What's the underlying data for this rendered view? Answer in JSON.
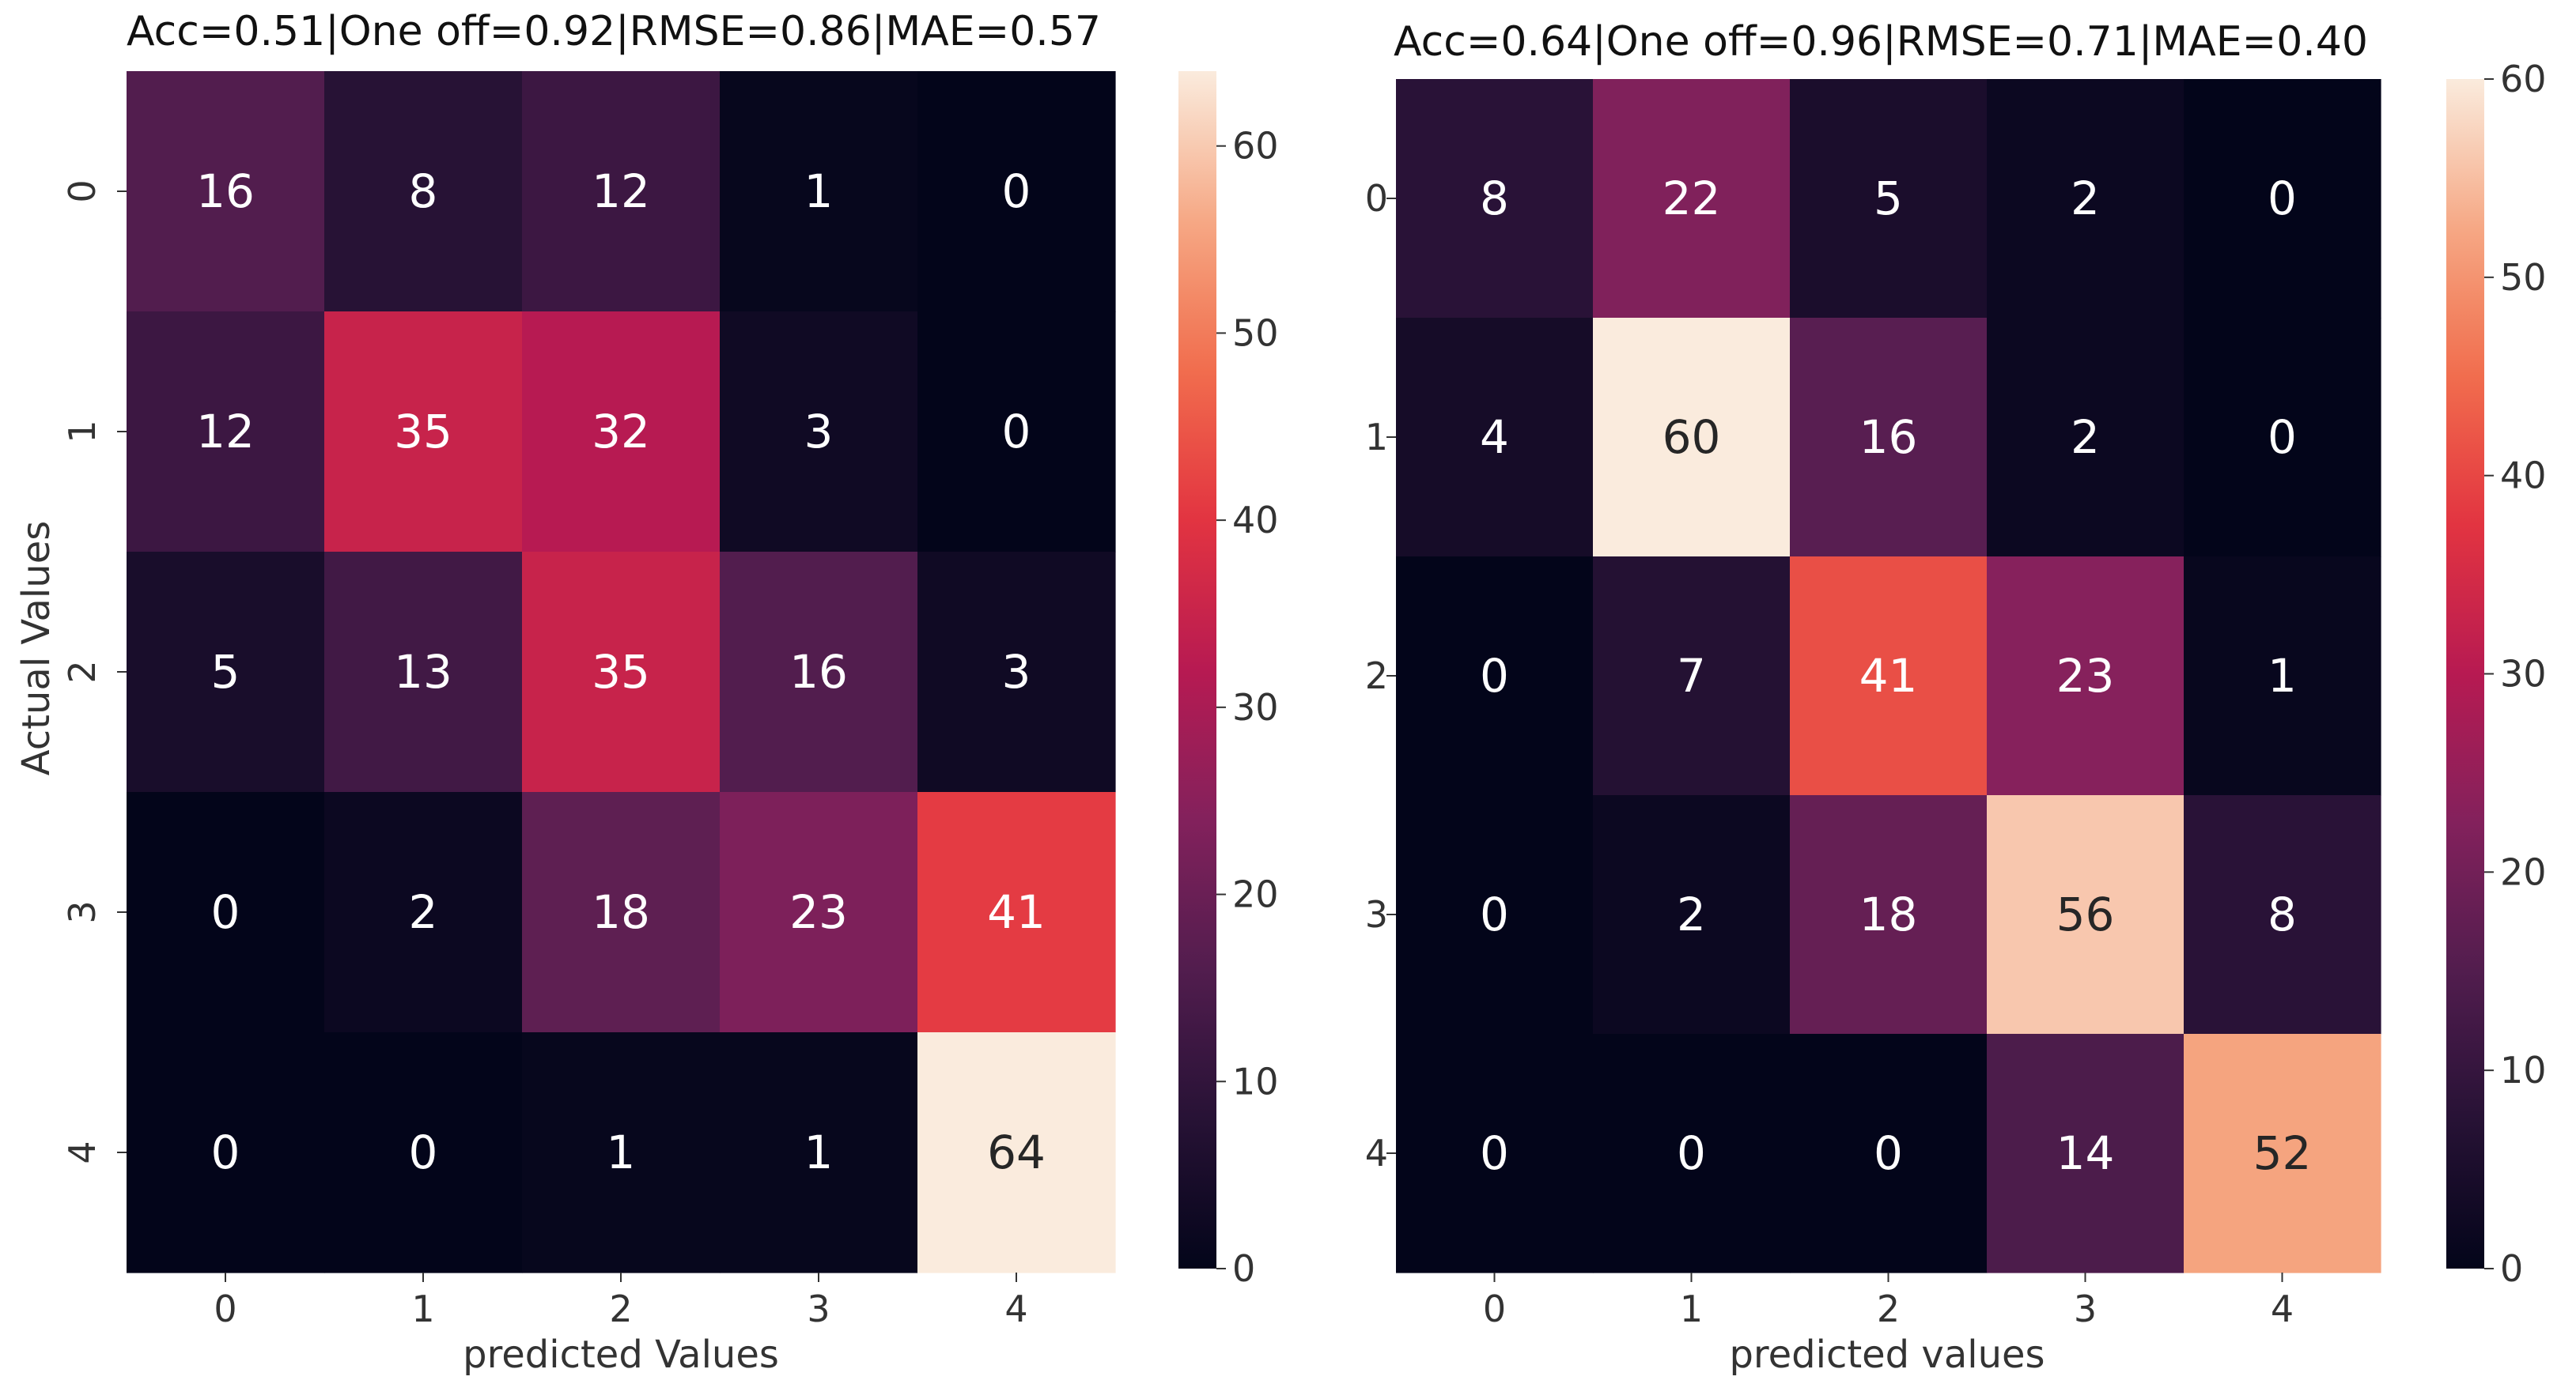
{
  "chart_data": [
    {
      "type": "heatmap",
      "title": "Acc=0.51|One off=0.92|RMSE=0.86|MAE=0.57",
      "xlabel": "predicted Values",
      "ylabel": "Actual Values",
      "x_categories": [
        "0",
        "1",
        "2",
        "3",
        "4"
      ],
      "y_categories": [
        "0",
        "1",
        "2",
        "3",
        "4"
      ],
      "values": [
        [
          16,
          8,
          12,
          1,
          0
        ],
        [
          12,
          35,
          32,
          3,
          0
        ],
        [
          5,
          13,
          35,
          16,
          3
        ],
        [
          0,
          2,
          18,
          23,
          41
        ],
        [
          0,
          0,
          1,
          1,
          64
        ]
      ],
      "vmin": 0,
      "vmax": 64,
      "colorbar_ticks": [
        "0",
        "10",
        "20",
        "30",
        "40",
        "50",
        "60"
      ],
      "colorbar_tick_values": [
        0,
        10,
        20,
        30,
        40,
        50,
        60
      ],
      "colormap": "rocket",
      "ytick_rotation_deg": -90
    },
    {
      "type": "heatmap",
      "title": "Acc=0.64|One off=0.96|RMSE=0.71|MAE=0.40",
      "xlabel": "predicted values",
      "ylabel": "",
      "x_categories": [
        "0",
        "1",
        "2",
        "3",
        "4"
      ],
      "y_categories": [
        "0",
        "1",
        "2",
        "3",
        "4"
      ],
      "values": [
        [
          8,
          22,
          5,
          2,
          0
        ],
        [
          4,
          60,
          16,
          2,
          0
        ],
        [
          0,
          7,
          41,
          23,
          1
        ],
        [
          0,
          2,
          18,
          56,
          8
        ],
        [
          0,
          0,
          0,
          14,
          52
        ]
      ],
      "vmin": 0,
      "vmax": 60,
      "colorbar_ticks": [
        "0",
        "10",
        "20",
        "30",
        "40",
        "50",
        "60"
      ],
      "colorbar_tick_values": [
        0,
        10,
        20,
        30,
        40,
        50,
        60
      ],
      "colormap": "rocket",
      "ytick_rotation_deg": 0
    }
  ]
}
